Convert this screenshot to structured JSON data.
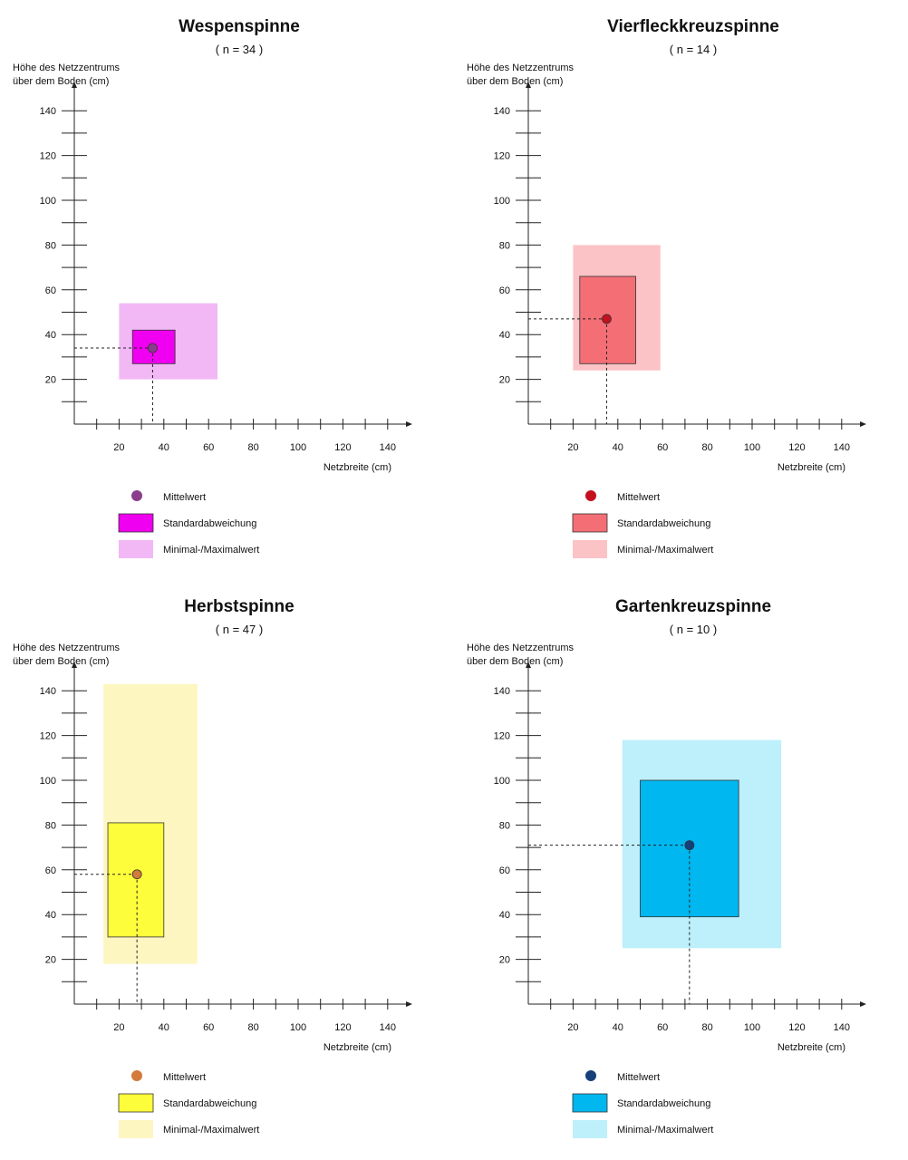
{
  "chart_data": [
    {
      "type": "scatter",
      "title": "Wespenspinne",
      "subtitle": "( n = 34 )",
      "xlabel": "Netzbreite (cm)",
      "ylabel": [
        "Höhe des Netzzentrums",
        "über dem Boden (cm)"
      ],
      "xlim": [
        0,
        150
      ],
      "ylim": [
        0,
        150
      ],
      "xticks": [
        20,
        40,
        60,
        80,
        100,
        120,
        140
      ],
      "yticks": [
        20,
        40,
        60,
        80,
        100,
        120,
        140
      ],
      "mean": {
        "x": 35,
        "y": 34
      },
      "std_box": {
        "x0": 26,
        "x1": 45,
        "y0": 27,
        "y1": 42
      },
      "minmax_box": {
        "x0": 20,
        "x1": 64,
        "y0": 20,
        "y1": 54
      },
      "colors": {
        "mean": "#8a3d8c",
        "std": "#f000f0",
        "minmax": "#f2b8f6"
      },
      "legend": [
        "Mittelwert",
        "Standardabweichung",
        "Minimal-/Maximalwert"
      ]
    },
    {
      "type": "scatter",
      "title": "Vierfleckkreuzspinne",
      "subtitle": "( n = 14 )",
      "xlabel": "Netzbreite (cm)",
      "ylabel": [
        "Höhe des Netzzentrums",
        "über dem Boden (cm)"
      ],
      "xlim": [
        0,
        150
      ],
      "ylim": [
        0,
        150
      ],
      "xticks": [
        20,
        40,
        60,
        80,
        100,
        120,
        140
      ],
      "yticks": [
        20,
        40,
        60,
        80,
        100,
        120,
        140
      ],
      "mean": {
        "x": 35,
        "y": 47
      },
      "std_box": {
        "x0": 23,
        "x1": 48,
        "y0": 27,
        "y1": 66
      },
      "minmax_box": {
        "x0": 20,
        "x1": 59,
        "y0": 24,
        "y1": 80
      },
      "colors": {
        "mean": "#c4101e",
        "std": "#f46e76",
        "minmax": "#fbc3c5"
      },
      "legend": [
        "Mittelwert",
        "Standardabweichung",
        "Minimal-/Maximalwert"
      ]
    },
    {
      "type": "scatter",
      "title": "Herbstspinne",
      "subtitle": "( n = 47 )",
      "xlabel": "Netzbreite (cm)",
      "ylabel": [
        "Höhe des Netzzentrums",
        "über dem Boden (cm)"
      ],
      "xlim": [
        0,
        150
      ],
      "ylim": [
        0,
        150
      ],
      "xticks": [
        20,
        40,
        60,
        80,
        100,
        120,
        140
      ],
      "yticks": [
        20,
        40,
        60,
        80,
        100,
        120,
        140
      ],
      "mean": {
        "x": 28,
        "y": 58
      },
      "std_box": {
        "x0": 15,
        "x1": 40,
        "y0": 30,
        "y1": 81
      },
      "minmax_box": {
        "x0": 13,
        "x1": 55,
        "y0": 18,
        "y1": 143
      },
      "colors": {
        "mean": "#d47a3a",
        "std": "#fdfd3c",
        "minmax": "#fdf6c0"
      },
      "legend": [
        "Mittelwert",
        "Standardabweichung",
        "Minimal-/Maximalwert"
      ]
    },
    {
      "type": "scatter",
      "title": "Gartenkreuzspinne",
      "subtitle": "( n = 10 )",
      "xlabel": "Netzbreite (cm)",
      "ylabel": [
        "Höhe des Netzzentrums",
        "über dem Boden (cm)"
      ],
      "xlim": [
        0,
        150
      ],
      "ylim": [
        0,
        150
      ],
      "xticks": [
        20,
        40,
        60,
        80,
        100,
        120,
        140
      ],
      "yticks": [
        20,
        40,
        60,
        80,
        100,
        120,
        140
      ],
      "mean": {
        "x": 72,
        "y": 71
      },
      "std_box": {
        "x0": 50,
        "x1": 94,
        "y0": 39,
        "y1": 100
      },
      "minmax_box": {
        "x0": 42,
        "x1": 113,
        "y0": 25,
        "y1": 118
      },
      "colors": {
        "mean": "#15407a",
        "std": "#00b7ef",
        "minmax": "#bdf0fb"
      },
      "legend": [
        "Mittelwert",
        "Standardabweichung",
        "Minimal-/Maximalwert"
      ]
    }
  ]
}
